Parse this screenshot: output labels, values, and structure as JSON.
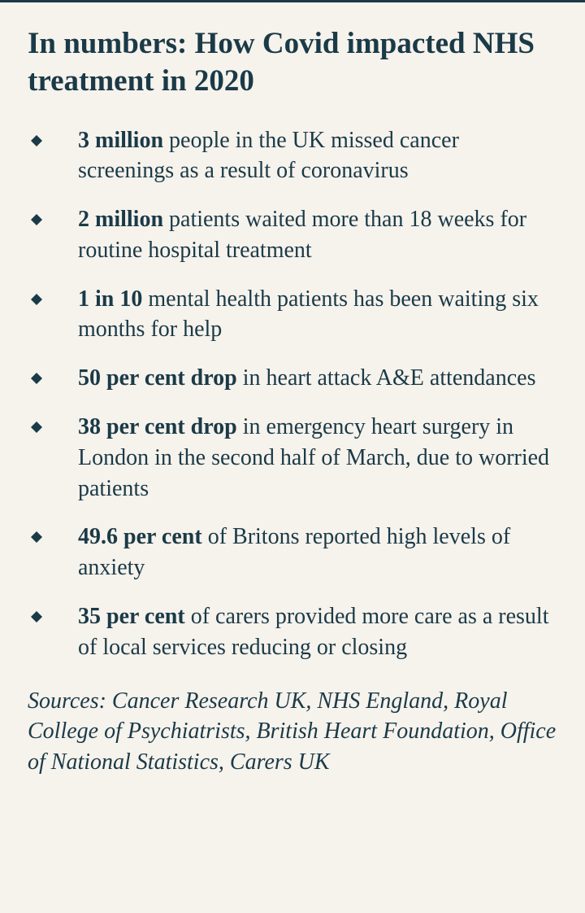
{
  "title": "In numbers: How Covid impacted NHS treatment in 2020",
  "bullet_color": "#1a3a47",
  "text_color": "#1a3a47",
  "background_color": "#f6f2ec",
  "title_fontsize": 37,
  "body_fontsize": 28,
  "items": [
    {
      "bold": "3 million",
      "rest": " people in the UK missed cancer screenings as a result of coronavirus"
    },
    {
      "bold": "2 million",
      "rest": " patients waited more than 18 weeks for routine hospital treatment"
    },
    {
      "bold": "1 in 10",
      "rest": " mental health patients has been waiting six months for help"
    },
    {
      "bold": "50 per cent drop",
      "rest": " in heart attack A&E attendances"
    },
    {
      "bold": "38 per cent drop",
      "rest": " in emergency heart surgery in London in the second half of March, due to worried patients"
    },
    {
      "bold": "49.6 per cent",
      "rest": " of Britons reported high levels of anxiety"
    },
    {
      "bold": "35 per cent",
      "rest": " of carers provided more care as a result of local services reducing or closing"
    }
  ],
  "sources": "Sources: Cancer Research UK, NHS England, Royal College of Psychiatrists, British Heart Foundation, Office of National Statistics, Carers UK"
}
